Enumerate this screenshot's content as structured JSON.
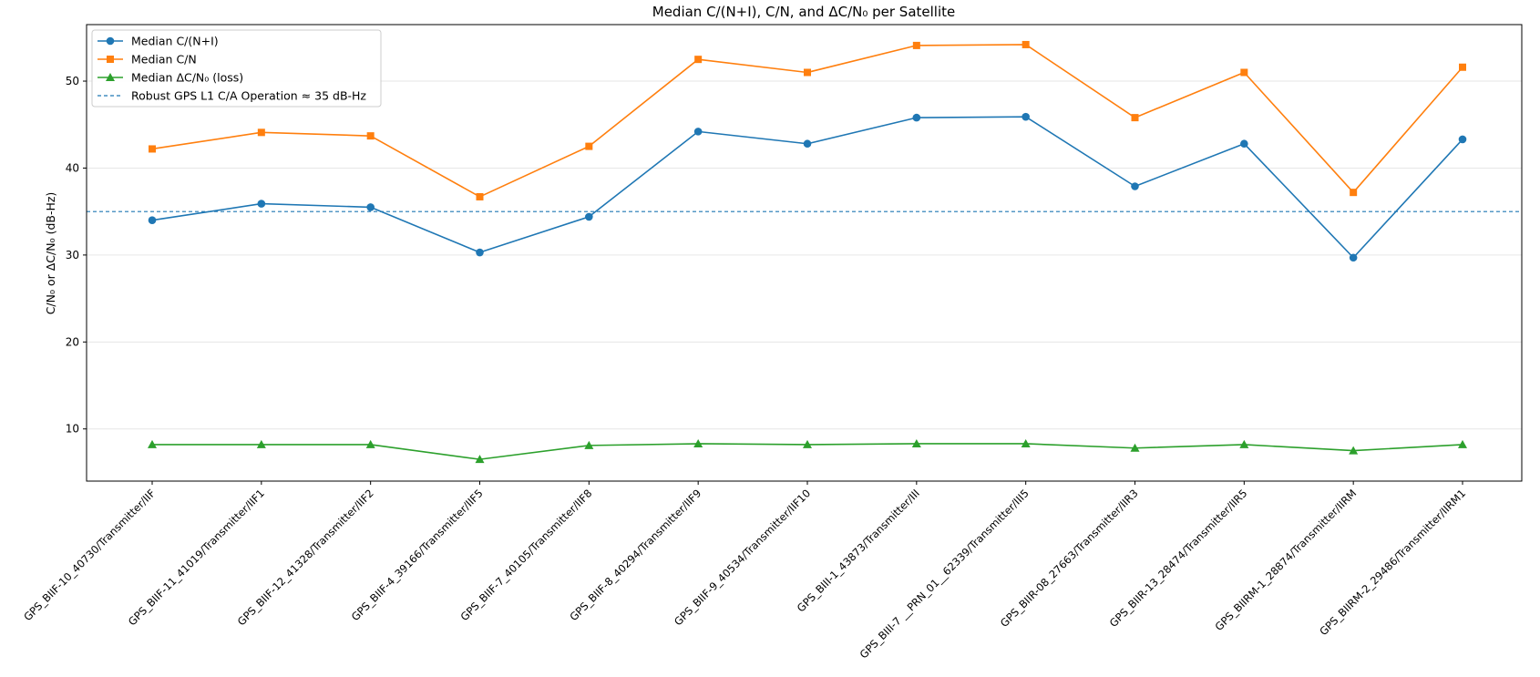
{
  "chart_data": {
    "type": "line",
    "title": "Median C/(N+I), C/N, and ΔC/N₀ per Satellite",
    "xlabel": "",
    "ylabel": "C/N₀ or ΔC/N₀ (dB-Hz)",
    "ylim": [
      4,
      56.5
    ],
    "yticks": [
      10,
      20,
      30,
      40,
      50
    ],
    "grid": "horizontal",
    "legend_position": "top-left",
    "categories": [
      "GPS_BIIF-10_40730/Transmitter/IIF",
      "GPS_BIIF-11_41019/Transmitter/IIF1",
      "GPS_BIIF-12_41328/Transmitter/IIF2",
      "GPS_BIIF-4_39166/Transmitter/IIF5",
      "GPS_BIIF-7_40105/Transmitter/IIF8",
      "GPS_BIIF-8_40294/Transmitter/IIF9",
      "GPS_BIIF-9_40534/Transmitter/IIF10",
      "GPS_BIII-1_43873/Transmitter/III",
      "GPS_BIII-7 __PRN_01__62339/Transmitter/III5",
      "GPS_BIIR-08_27663/Transmitter/IIR3",
      "GPS_BIIR-13_28474/Transmitter/IIR5",
      "GPS_BIIRM-1_28874/Transmitter/IIRM",
      "GPS_BIIRM-2_29486/Transmitter/IIRM1"
    ],
    "series": [
      {
        "name": "Median C/(N+I)",
        "color": "#1f77b4",
        "marker": "circle",
        "values": [
          34.0,
          35.9,
          35.5,
          30.3,
          34.4,
          44.2,
          42.8,
          45.8,
          45.9,
          37.9,
          42.8,
          29.7,
          43.3
        ]
      },
      {
        "name": "Median C/N",
        "color": "#ff7f0e",
        "marker": "square",
        "values": [
          42.2,
          44.1,
          43.7,
          36.7,
          42.5,
          52.5,
          51.0,
          54.1,
          54.2,
          45.8,
          51.0,
          37.2,
          51.6
        ]
      },
      {
        "name": "Median ΔC/N₀ (loss)",
        "color": "#2ca02c",
        "marker": "triangle",
        "values": [
          8.2,
          8.2,
          8.2,
          6.5,
          8.1,
          8.3,
          8.2,
          8.3,
          8.3,
          7.8,
          8.2,
          7.5,
          8.2
        ]
      }
    ],
    "reference_line": {
      "name": "Robust GPS L1 C/A Operation ≈ 35 dB-Hz",
      "value": 35,
      "color": "#1f77b4",
      "style": "dashed"
    }
  }
}
